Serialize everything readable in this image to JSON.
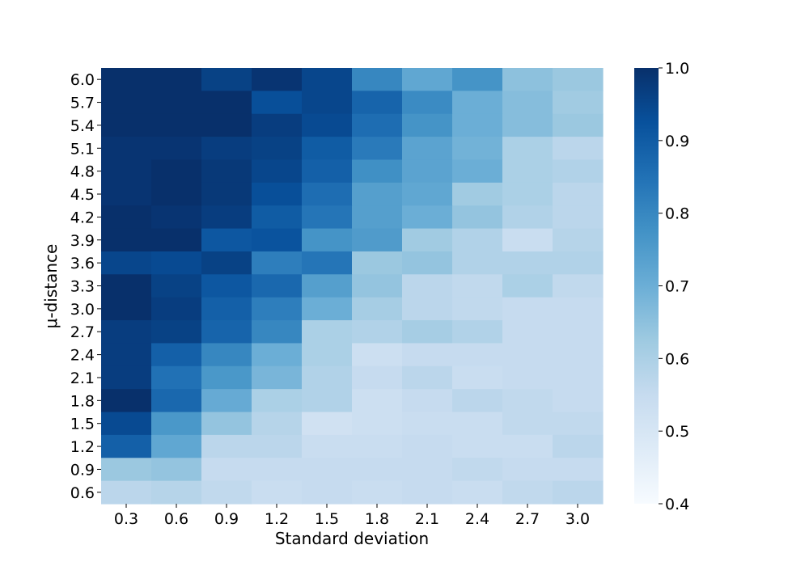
{
  "chart_data": {
    "type": "heatmap",
    "title": "",
    "xlabel": "Standard deviation",
    "ylabel": "μ-distance",
    "x_categories": [
      "0.3",
      "0.6",
      "0.9",
      "1.2",
      "1.5",
      "1.8",
      "2.1",
      "2.4",
      "2.7",
      "3.0"
    ],
    "y_categories": [
      "6.0",
      "5.7",
      "5.4",
      "5.1",
      "4.8",
      "4.5",
      "4.2",
      "3.9",
      "3.6",
      "3.3",
      "3.0",
      "2.7",
      "2.4",
      "2.1",
      "1.8",
      "1.5",
      "1.2",
      "0.9",
      "0.6"
    ],
    "values": [
      [
        1.0,
        1.0,
        0.96,
        0.99,
        0.95,
        0.8,
        0.72,
        0.77,
        0.65,
        0.63
      ],
      [
        1.0,
        1.0,
        1.0,
        0.93,
        0.95,
        0.88,
        0.79,
        0.7,
        0.66,
        0.62
      ],
      [
        1.0,
        1.0,
        1.0,
        0.97,
        0.94,
        0.86,
        0.77,
        0.7,
        0.66,
        0.63
      ],
      [
        0.99,
        0.99,
        0.97,
        0.96,
        0.9,
        0.83,
        0.73,
        0.69,
        0.6,
        0.57
      ],
      [
        0.99,
        1.0,
        0.98,
        0.95,
        0.89,
        0.78,
        0.73,
        0.7,
        0.6,
        0.59
      ],
      [
        0.99,
        1.0,
        0.98,
        0.93,
        0.86,
        0.74,
        0.72,
        0.62,
        0.6,
        0.57
      ],
      [
        1.0,
        0.99,
        0.97,
        0.9,
        0.84,
        0.74,
        0.7,
        0.64,
        0.59,
        0.57
      ],
      [
        1.0,
        1.0,
        0.91,
        0.92,
        0.77,
        0.75,
        0.62,
        0.59,
        0.54,
        0.58
      ],
      [
        0.95,
        0.94,
        0.96,
        0.82,
        0.84,
        0.63,
        0.64,
        0.59,
        0.59,
        0.59
      ],
      [
        1.0,
        0.96,
        0.91,
        0.87,
        0.74,
        0.64,
        0.57,
        0.56,
        0.6,
        0.56
      ],
      [
        1.0,
        0.97,
        0.89,
        0.82,
        0.7,
        0.61,
        0.57,
        0.56,
        0.55,
        0.55
      ],
      [
        0.97,
        0.96,
        0.88,
        0.8,
        0.6,
        0.59,
        0.61,
        0.59,
        0.55,
        0.55
      ],
      [
        0.97,
        0.89,
        0.8,
        0.7,
        0.6,
        0.53,
        0.55,
        0.55,
        0.55,
        0.55
      ],
      [
        0.97,
        0.85,
        0.76,
        0.68,
        0.59,
        0.55,
        0.57,
        0.54,
        0.55,
        0.55
      ],
      [
        1.0,
        0.87,
        0.71,
        0.6,
        0.59,
        0.53,
        0.55,
        0.57,
        0.56,
        0.55
      ],
      [
        0.94,
        0.76,
        0.64,
        0.58,
        0.52,
        0.53,
        0.54,
        0.54,
        0.56,
        0.56
      ],
      [
        0.89,
        0.72,
        0.57,
        0.57,
        0.54,
        0.54,
        0.55,
        0.54,
        0.54,
        0.57
      ],
      [
        0.63,
        0.64,
        0.55,
        0.55,
        0.55,
        0.55,
        0.55,
        0.56,
        0.55,
        0.55
      ],
      [
        0.57,
        0.58,
        0.56,
        0.54,
        0.55,
        0.54,
        0.55,
        0.54,
        0.56,
        0.57
      ]
    ],
    "colorbar": {
      "range": [
        0.4,
        1.0
      ],
      "ticks": [
        "1.0",
        "0.9",
        "0.8",
        "0.7",
        "0.6",
        "0.5",
        "0.4"
      ],
      "colormap": "Blues"
    }
  }
}
